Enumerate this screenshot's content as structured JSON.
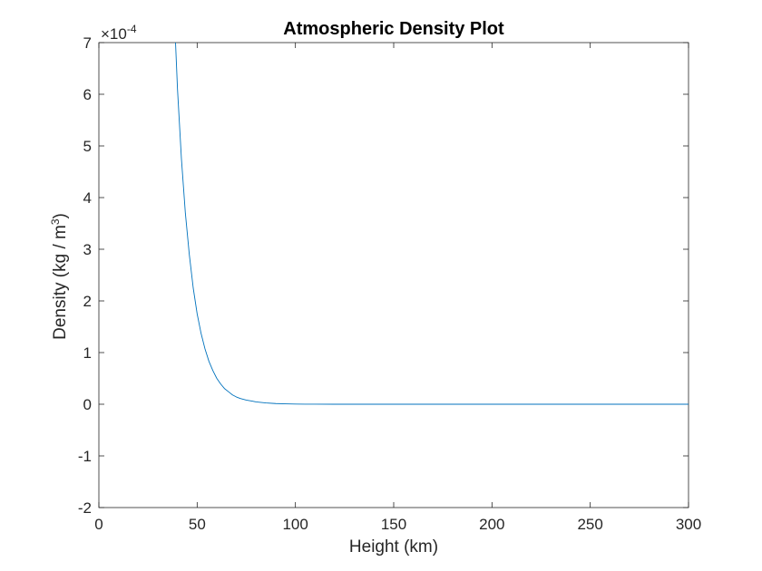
{
  "chart_data": {
    "type": "line",
    "title": "Atmospheric Density Plot",
    "xlabel": "Height (km)",
    "ylabel": {
      "main": "Density (kg / m",
      "sup": "3",
      "close": ")"
    },
    "exponent": {
      "base": "×10",
      "power": "-4"
    },
    "xlim": [
      0,
      300
    ],
    "ylim": [
      -2,
      7
    ],
    "y_scale": "1e-4",
    "x_ticks": [
      "0",
      "50",
      "100",
      "150",
      "200",
      "250",
      "300"
    ],
    "y_ticks": [
      "-2",
      "-1",
      "0",
      "1",
      "2",
      "3",
      "4",
      "5",
      "6",
      "7"
    ],
    "grid": false,
    "box": true,
    "series": [
      {
        "color": "#0072BD",
        "x": [
          39,
          40,
          42,
          44,
          46,
          48,
          50,
          52,
          54,
          56,
          58,
          60,
          62,
          64,
          66,
          68,
          70,
          72,
          75,
          78,
          80,
          85,
          90,
          95,
          100,
          105,
          110,
          120,
          150,
          200,
          250,
          300
        ],
        "y": [
          7.0,
          6.1,
          4.75,
          3.7,
          2.9,
          2.25,
          1.75,
          1.37,
          1.07,
          0.83,
          0.65,
          0.5,
          0.39,
          0.3,
          0.24,
          0.18,
          0.14,
          0.11,
          0.08,
          0.06,
          0.045,
          0.025,
          0.013,
          0.007,
          0.003,
          0.0015,
          0.0005,
          0.0002,
          0.0,
          0.0,
          0.0,
          0.0
        ]
      }
    ]
  }
}
